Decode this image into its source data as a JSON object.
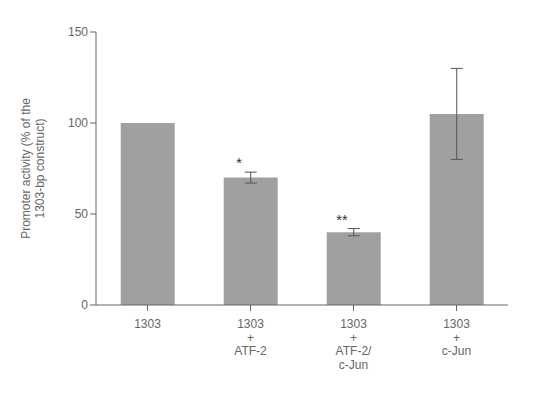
{
  "chart_data": {
    "type": "bar",
    "categories": [
      "1303",
      "1303\n+\nATF-2",
      "1303\n+\nATF-2/\nc-Jun",
      "1303\n+\nc-Jun"
    ],
    "values": [
      100,
      70,
      40,
      105
    ],
    "errors": [
      0,
      3,
      2,
      25
    ],
    "significance": [
      null,
      "*",
      "**",
      null
    ],
    "color": "#a0a0a0",
    "ylabel": "Promoter activity (% of the\n1303-bp construct)",
    "ylim": [
      0,
      150
    ],
    "yticks": [
      0,
      50,
      100,
      150
    ],
    "grid": false
  }
}
